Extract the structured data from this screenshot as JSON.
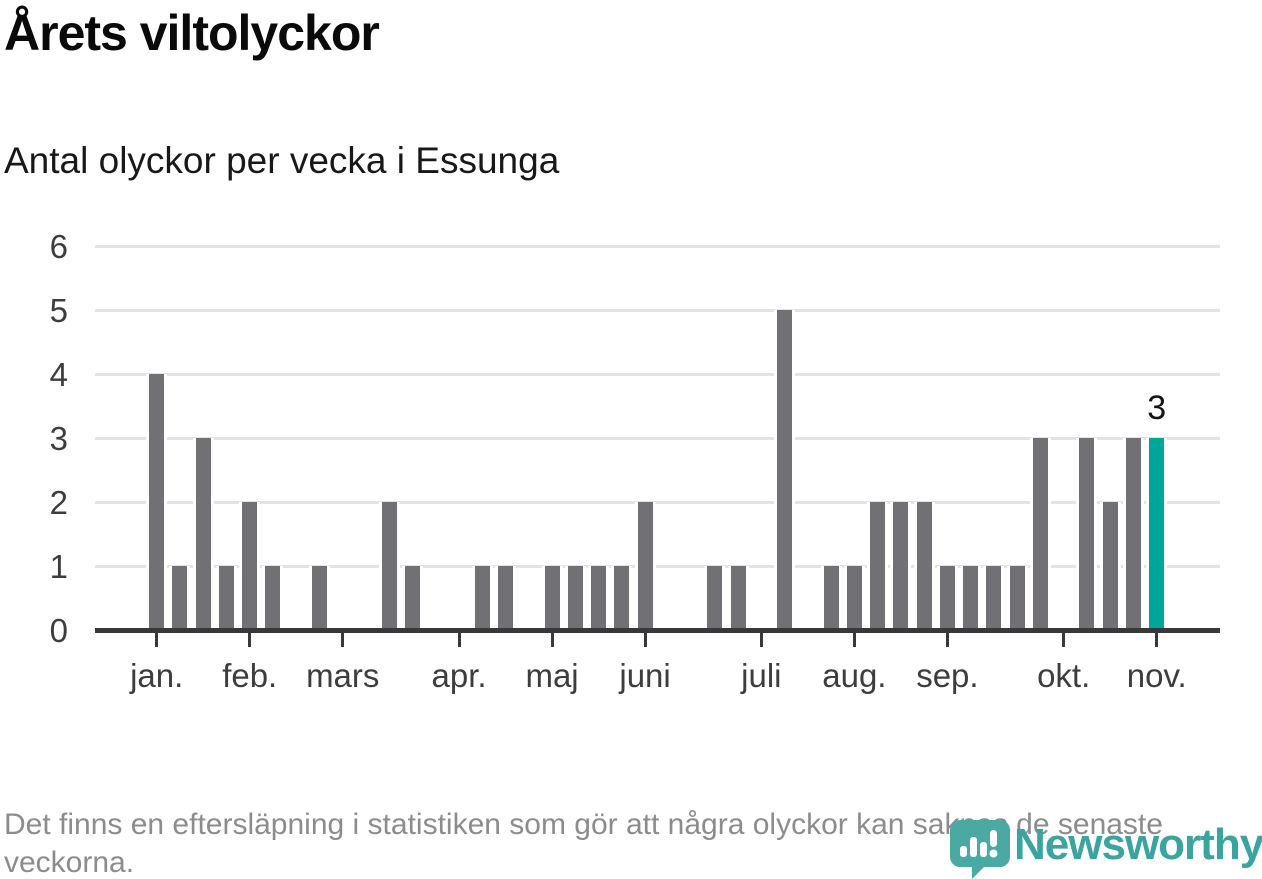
{
  "title": "Årets viltolyckor",
  "subtitle": "Antal olyckor per vecka i Essunga",
  "footer": {
    "note": "Det finns en eftersläpning i statistiken som gör att några olyckor kan saknas de senaste veckorna."
  },
  "logo": {
    "brand": "Newsworthy",
    "color": "#3aa49e"
  },
  "chart_data": {
    "type": "bar",
    "title": "Årets viltolyckor",
    "subtitle": "Antal olyckor per vecka i Essunga",
    "x_unit": "vecka (week of year)",
    "categories": [
      1,
      2,
      3,
      4,
      5,
      6,
      7,
      8,
      9,
      10,
      11,
      12,
      13,
      14,
      15,
      16,
      17,
      18,
      19,
      20,
      21,
      22,
      23,
      24,
      25,
      26,
      27,
      28,
      29,
      30,
      31,
      32,
      33,
      34,
      35,
      36,
      37,
      38,
      39,
      40,
      41,
      42,
      43,
      44
    ],
    "values": [
      4,
      1,
      3,
      1,
      2,
      1,
      0,
      1,
      0,
      0,
      2,
      1,
      0,
      0,
      1,
      1,
      0,
      1,
      1,
      1,
      1,
      2,
      0,
      0,
      1,
      1,
      0,
      5,
      0,
      1,
      1,
      2,
      2,
      2,
      1,
      1,
      1,
      1,
      3,
      0,
      3,
      2,
      3,
      3
    ],
    "highlight_index": 43,
    "highlight_value_label": "3",
    "y_ticks": [
      "0",
      "1",
      "2",
      "3",
      "4",
      "5",
      "6"
    ],
    "ylim": [
      0,
      6
    ],
    "grid": "horizontal",
    "legend": "none",
    "month_ticks": [
      {
        "label": "jan.",
        "week": 1
      },
      {
        "label": "feb.",
        "week": 5
      },
      {
        "label": "mars",
        "week": 9
      },
      {
        "label": "apr.",
        "week": 14
      },
      {
        "label": "maj",
        "week": 18
      },
      {
        "label": "juni",
        "week": 22
      },
      {
        "label": "juli",
        "week": 27
      },
      {
        "label": "aug.",
        "week": 31
      },
      {
        "label": "sep.",
        "week": 35
      },
      {
        "label": "okt.",
        "week": 40
      },
      {
        "label": "nov.",
        "week": 44
      }
    ],
    "colors": {
      "bar": "#717075",
      "highlight": "#00a69a",
      "gridline": "#e3e3e3",
      "axis": "#383838",
      "tick_label": "#3d3d3d"
    }
  }
}
